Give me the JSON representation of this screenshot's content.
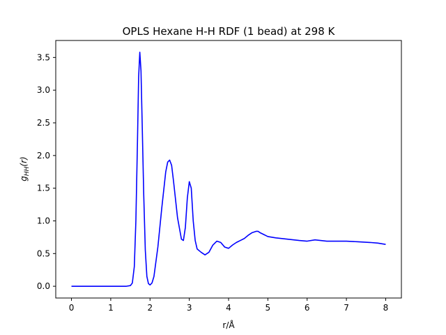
{
  "chart_data": {
    "type": "line",
    "title": "OPLS Hexane H-H RDF (1 bead) at 298 K",
    "xlabel": "r/Å",
    "ylabel_base": "g",
    "ylabel_sub": "HH",
    "ylabel_arg": "(r)",
    "xlim": [
      -0.4,
      8.4
    ],
    "ylim": [
      -0.18,
      3.76
    ],
    "xticks": [
      0,
      1,
      2,
      3,
      4,
      5,
      6,
      7,
      8
    ],
    "xtick_labels": [
      "0",
      "1",
      "2",
      "3",
      "4",
      "5",
      "6",
      "7",
      "8"
    ],
    "yticks": [
      0.0,
      0.5,
      1.0,
      1.5,
      2.0,
      2.5,
      3.0,
      3.5
    ],
    "ytick_labels": [
      "0.0",
      "0.5",
      "1.0",
      "1.5",
      "2.0",
      "2.5",
      "3.0",
      "3.5"
    ],
    "grid": false,
    "line_color": "#0000ff",
    "series": [
      {
        "x": [
          0,
          0.5,
          1.0,
          1.4,
          1.5,
          1.55,
          1.6,
          1.64,
          1.68,
          1.71,
          1.74,
          1.77,
          1.8,
          1.84,
          1.88,
          1.92,
          1.96,
          2.0,
          2.05,
          2.1,
          2.2,
          2.3,
          2.4,
          2.45,
          2.5,
          2.55,
          2.6,
          2.7,
          2.8,
          2.85,
          2.9,
          2.95,
          3.0,
          3.05,
          3.1,
          3.15,
          3.2,
          3.3,
          3.4,
          3.5,
          3.6,
          3.7,
          3.8,
          3.9,
          4.0,
          4.1,
          4.2,
          4.3,
          4.4,
          4.5,
          4.6,
          4.7,
          4.75,
          4.8,
          4.9,
          5.0,
          5.2,
          5.5,
          5.8,
          6.0,
          6.2,
          6.5,
          6.8,
          7.0,
          7.3,
          7.6,
          7.8,
          8.0
        ],
        "y": [
          0.0,
          0.0,
          0.0,
          0.0,
          0.01,
          0.05,
          0.3,
          1.0,
          2.2,
          3.2,
          3.58,
          3.3,
          2.5,
          1.4,
          0.55,
          0.15,
          0.04,
          0.02,
          0.05,
          0.15,
          0.6,
          1.2,
          1.75,
          1.9,
          1.93,
          1.85,
          1.6,
          1.05,
          0.72,
          0.7,
          0.9,
          1.35,
          1.6,
          1.5,
          1.0,
          0.7,
          0.57,
          0.52,
          0.48,
          0.52,
          0.63,
          0.69,
          0.67,
          0.6,
          0.58,
          0.63,
          0.67,
          0.7,
          0.73,
          0.78,
          0.82,
          0.84,
          0.84,
          0.82,
          0.79,
          0.76,
          0.74,
          0.72,
          0.7,
          0.69,
          0.71,
          0.69,
          0.69,
          0.69,
          0.68,
          0.67,
          0.66,
          0.64
        ]
      }
    ]
  }
}
